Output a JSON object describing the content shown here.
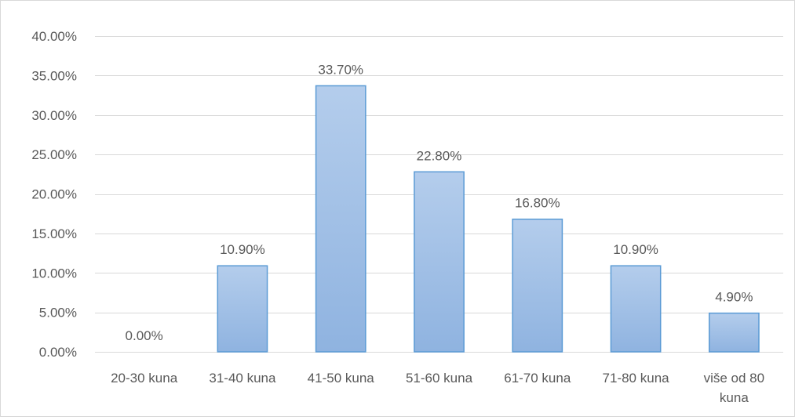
{
  "chart_data": {
    "type": "bar",
    "title": "",
    "xlabel": "",
    "ylabel": "",
    "categories": [
      "20-30 kuna",
      "31-40 kuna",
      "41-50 kuna",
      "51-60 kuna",
      "61-70 kuna",
      "71-80 kuna",
      "više od 80 kuna"
    ],
    "category_lines": [
      [
        "20-30 kuna"
      ],
      [
        "31-40 kuna"
      ],
      [
        "41-50 kuna"
      ],
      [
        "51-60 kuna"
      ],
      [
        "61-70 kuna"
      ],
      [
        "71-80 kuna"
      ],
      [
        "više od 80",
        "kuna"
      ]
    ],
    "values": [
      0.0,
      10.9,
      33.7,
      22.8,
      16.8,
      10.9,
      4.9
    ],
    "data_labels": [
      "0.00%",
      "10.90%",
      "33.70%",
      "22.80%",
      "16.80%",
      "10.90%",
      "4.90%"
    ],
    "ylim": [
      0,
      40
    ],
    "yticks": [
      0,
      5,
      10,
      15,
      20,
      25,
      30,
      35,
      40
    ],
    "ytick_labels": [
      "0.00%",
      "5.00%",
      "10.00%",
      "15.00%",
      "20.00%",
      "25.00%",
      "30.00%",
      "35.00%",
      "40.00%"
    ],
    "grid": true,
    "legend": "none",
    "colors": {
      "bar_top": "#b4cdec",
      "bar_bottom": "#8fb3e0",
      "bar_border": "#5b9bd5",
      "grid": "#d9d9d9",
      "text": "#595959"
    }
  }
}
